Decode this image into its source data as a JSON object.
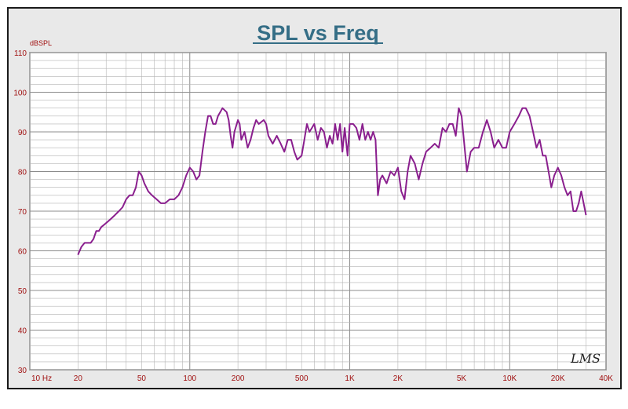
{
  "colors": {
    "background": "#e9e9e9",
    "plot_background": "#ffffff",
    "title": "#356e86",
    "labels": "#a01010",
    "curve": "#8a1f8e",
    "grid": "#b4b4b4"
  },
  "logo_text": "LMS",
  "chart_data": {
    "type": "line",
    "title": "SPL vs Freq",
    "ylabel": "dBSPL",
    "xlabel": "",
    "xscale": "log",
    "xlim": [
      10,
      40000
    ],
    "ylim": [
      30,
      110
    ],
    "grid": true,
    "x_ticks": [
      {
        "value": 10,
        "label": "10 Hz"
      },
      {
        "value": 20,
        "label": "20"
      },
      {
        "value": 50,
        "label": "50"
      },
      {
        "value": 100,
        "label": "100"
      },
      {
        "value": 200,
        "label": "200"
      },
      {
        "value": 500,
        "label": "500"
      },
      {
        "value": 1000,
        "label": "1K"
      },
      {
        "value": 2000,
        "label": "2K"
      },
      {
        "value": 5000,
        "label": "5K"
      },
      {
        "value": 10000,
        "label": "10K"
      },
      {
        "value": 20000,
        "label": "20K"
      },
      {
        "value": 40000,
        "label": "40K"
      }
    ],
    "y_ticks": [
      {
        "value": 30,
        "label": "30"
      },
      {
        "value": 40,
        "label": "40"
      },
      {
        "value": 50,
        "label": "50"
      },
      {
        "value": 60,
        "label": "60"
      },
      {
        "value": 70,
        "label": "70"
      },
      {
        "value": 80,
        "label": "80"
      },
      {
        "value": 90,
        "label": "90"
      },
      {
        "value": 100,
        "label": "100"
      },
      {
        "value": 110,
        "label": "110"
      }
    ],
    "series": [
      {
        "name": "",
        "points": [
          [
            20,
            59
          ],
          [
            21,
            61
          ],
          [
            22,
            62
          ],
          [
            24,
            62
          ],
          [
            25,
            63
          ],
          [
            26,
            65
          ],
          [
            27,
            65
          ],
          [
            28,
            66
          ],
          [
            30,
            67
          ],
          [
            32,
            68
          ],
          [
            34,
            69
          ],
          [
            36,
            70
          ],
          [
            38,
            71
          ],
          [
            40,
            73
          ],
          [
            42,
            74
          ],
          [
            44,
            74
          ],
          [
            46,
            76
          ],
          [
            48,
            80
          ],
          [
            50,
            79
          ],
          [
            52,
            77
          ],
          [
            55,
            75
          ],
          [
            58,
            74
          ],
          [
            62,
            73
          ],
          [
            66,
            72
          ],
          [
            70,
            72
          ],
          [
            75,
            73
          ],
          [
            80,
            73
          ],
          [
            85,
            74
          ],
          [
            90,
            76
          ],
          [
            95,
            79
          ],
          [
            100,
            81
          ],
          [
            105,
            80
          ],
          [
            110,
            78
          ],
          [
            115,
            79
          ],
          [
            120,
            85
          ],
          [
            125,
            90
          ],
          [
            130,
            94
          ],
          [
            135,
            94
          ],
          [
            140,
            92
          ],
          [
            145,
            92
          ],
          [
            150,
            94
          ],
          [
            155,
            95
          ],
          [
            160,
            96
          ],
          [
            170,
            95
          ],
          [
            175,
            93
          ],
          [
            180,
            89
          ],
          [
            185,
            86
          ],
          [
            190,
            90
          ],
          [
            200,
            93
          ],
          [
            205,
            92
          ],
          [
            210,
            88
          ],
          [
            220,
            90
          ],
          [
            230,
            86
          ],
          [
            240,
            88
          ],
          [
            250,
            91
          ],
          [
            260,
            93
          ],
          [
            270,
            92
          ],
          [
            290,
            93
          ],
          [
            300,
            92
          ],
          [
            310,
            89
          ],
          [
            330,
            87
          ],
          [
            350,
            89
          ],
          [
            370,
            87
          ],
          [
            390,
            85
          ],
          [
            410,
            88
          ],
          [
            430,
            88
          ],
          [
            450,
            85
          ],
          [
            470,
            83
          ],
          [
            500,
            84
          ],
          [
            520,
            88
          ],
          [
            540,
            92
          ],
          [
            560,
            90
          ],
          [
            580,
            91
          ],
          [
            600,
            92
          ],
          [
            630,
            88
          ],
          [
            660,
            91
          ],
          [
            690,
            90
          ],
          [
            720,
            86
          ],
          [
            750,
            89
          ],
          [
            780,
            87
          ],
          [
            810,
            92
          ],
          [
            840,
            88
          ],
          [
            870,
            92
          ],
          [
            900,
            85
          ],
          [
            930,
            91
          ],
          [
            970,
            84
          ],
          [
            1000,
            92
          ],
          [
            1050,
            92
          ],
          [
            1100,
            91
          ],
          [
            1150,
            88
          ],
          [
            1200,
            92
          ],
          [
            1250,
            88
          ],
          [
            1300,
            90
          ],
          [
            1350,
            88
          ],
          [
            1400,
            90
          ],
          [
            1450,
            88
          ],
          [
            1500,
            74
          ],
          [
            1550,
            78
          ],
          [
            1600,
            79
          ],
          [
            1700,
            77
          ],
          [
            1800,
            80
          ],
          [
            1900,
            79
          ],
          [
            2000,
            81
          ],
          [
            2100,
            75
          ],
          [
            2200,
            73
          ],
          [
            2300,
            80
          ],
          [
            2400,
            84
          ],
          [
            2550,
            82
          ],
          [
            2700,
            78
          ],
          [
            2850,
            82
          ],
          [
            3000,
            85
          ],
          [
            3200,
            86
          ],
          [
            3400,
            87
          ],
          [
            3600,
            86
          ],
          [
            3800,
            91
          ],
          [
            4000,
            90
          ],
          [
            4200,
            92
          ],
          [
            4400,
            92
          ],
          [
            4600,
            89
          ],
          [
            4800,
            96
          ],
          [
            5000,
            94
          ],
          [
            5200,
            87
          ],
          [
            5400,
            80
          ],
          [
            5700,
            85
          ],
          [
            6000,
            86
          ],
          [
            6400,
            86
          ],
          [
            6800,
            90
          ],
          [
            7200,
            93
          ],
          [
            7600,
            90
          ],
          [
            8000,
            86
          ],
          [
            8500,
            88
          ],
          [
            9000,
            86
          ],
          [
            9500,
            86
          ],
          [
            10000,
            90
          ],
          [
            10700,
            92
          ],
          [
            11400,
            94
          ],
          [
            12000,
            96
          ],
          [
            12600,
            96
          ],
          [
            13300,
            94
          ],
          [
            14000,
            90
          ],
          [
            14700,
            86
          ],
          [
            15400,
            88
          ],
          [
            16100,
            84
          ],
          [
            16800,
            84
          ],
          [
            17500,
            80
          ],
          [
            18200,
            76
          ],
          [
            19000,
            79
          ],
          [
            20000,
            81
          ],
          [
            21000,
            79
          ],
          [
            22000,
            76
          ],
          [
            23000,
            74
          ],
          [
            24000,
            75
          ],
          [
            25000,
            70
          ],
          [
            26000,
            70
          ],
          [
            27000,
            72
          ],
          [
            28000,
            75
          ],
          [
            29000,
            72
          ],
          [
            30000,
            69
          ]
        ]
      }
    ]
  }
}
